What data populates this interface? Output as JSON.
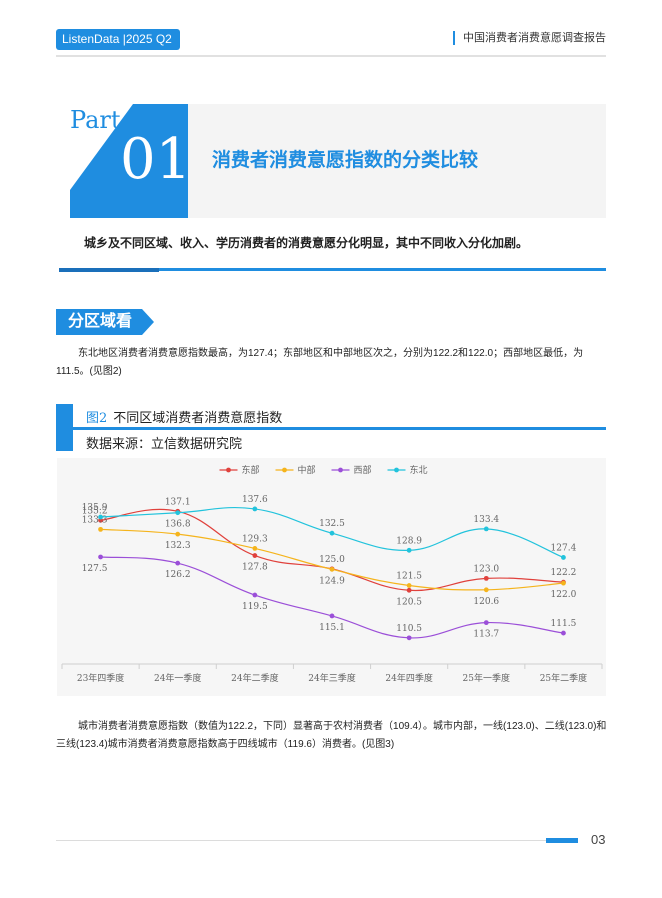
{
  "header": {
    "brand": "ListenData |2025 Q2",
    "report_title": "中国消费者消费意愿调查报告"
  },
  "part": {
    "word": "Part",
    "number": "01",
    "heading": "消费者消费意愿指数的分类比较",
    "summary": "城乡及不同区域、收入、学历消费者的消费意愿分化明显，其中不同收入分化加剧。"
  },
  "section": {
    "label": "分区域看"
  },
  "paragraphs": {
    "p1": "东北地区消费者消费意愿指数最高，为127.4；东部地区和中部地区次之，分别为122.2和122.0；西部地区最低，为111.5。(见图2)",
    "p2": "城市消费者消费意愿指数（数值为122.2，下同）显著高于农村消费者（109.4）。城市内部，一线(123.0)、二线(123.0)和三线(123.4)城市消费者消费意愿指数高于四线城市（119.6）消费者。(见图3)"
  },
  "figure": {
    "number": "图2",
    "title": "不同区域消费者消费意愿指数",
    "source": "数据来源：立信数据研究院"
  },
  "chart_data": {
    "type": "line",
    "categories": [
      "23年四季度",
      "24年一季度",
      "24年二季度",
      "24年三季度",
      "24年四季度",
      "25年一季度",
      "25年二季度"
    ],
    "series": [
      {
        "name": "东部",
        "color": "#e0413c",
        "values": [
          135.2,
          137.1,
          127.8,
          125.0,
          120.5,
          123.0,
          122.2
        ]
      },
      {
        "name": "中部",
        "color": "#f5b41c",
        "values": [
          133.3,
          132.3,
          129.3,
          124.9,
          121.5,
          120.6,
          122.0
        ]
      },
      {
        "name": "西部",
        "color": "#9b4fd8",
        "values": [
          127.5,
          126.2,
          119.5,
          115.1,
          110.5,
          113.7,
          111.5
        ]
      },
      {
        "name": "东北",
        "color": "#22c3dc",
        "values": [
          135.9,
          136.8,
          137.6,
          132.5,
          128.9,
          133.4,
          127.4
        ]
      }
    ],
    "ylim": [
      105,
      142
    ],
    "grid": false,
    "legend": "top-center"
  },
  "footer": {
    "page_number": "03"
  }
}
